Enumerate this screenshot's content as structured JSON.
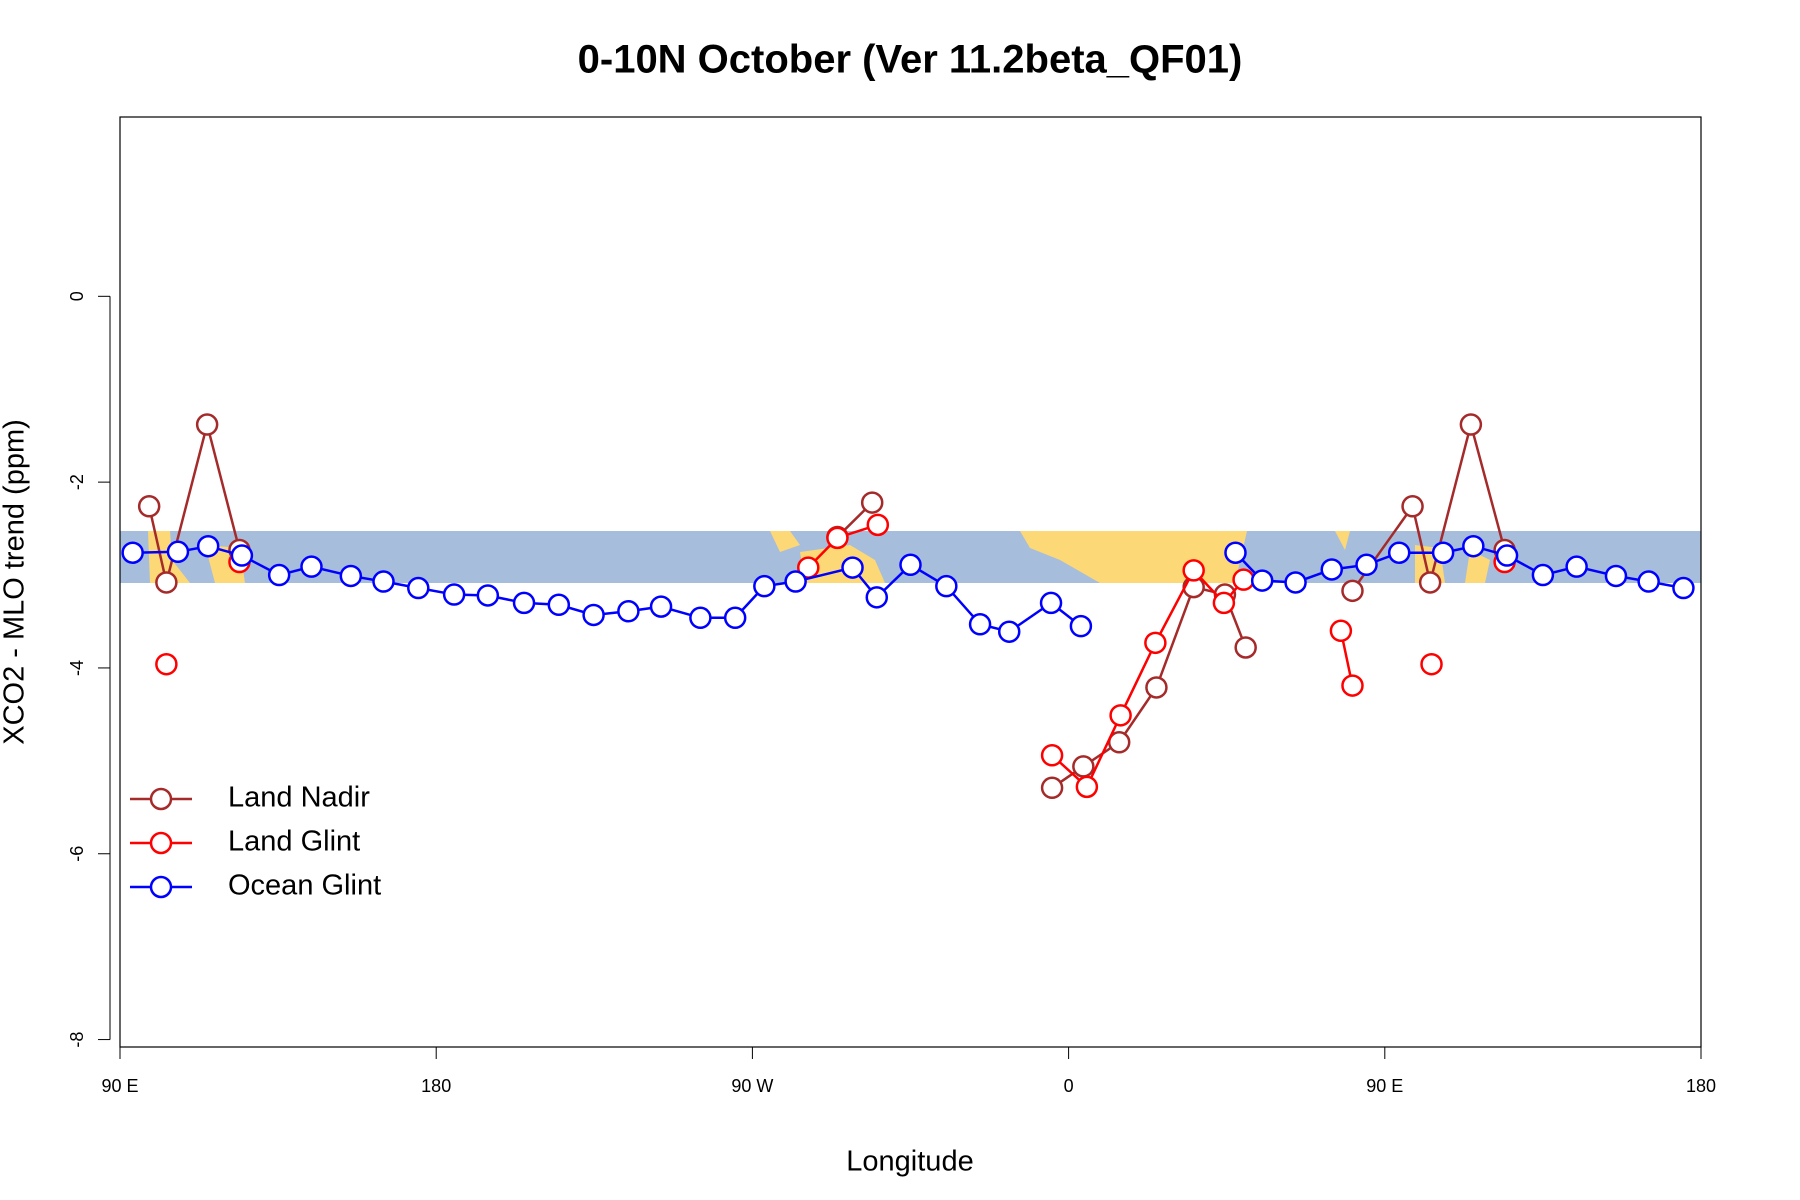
{
  "chart_data": {
    "type": "line",
    "title": "0-10N October (Ver 11.2beta_QF01)",
    "x_label": "Longitude",
    "y_label": "XCO2 - MLO trend (ppm)",
    "xlim": [
      90,
      540
    ],
    "xticks": [
      {
        "value": 90,
        "label": "90 E"
      },
      180,
      {
        "value": 270,
        "label": "90 W"
      },
      {
        "value": 360,
        "label": "0"
      },
      {
        "value": 450,
        "label": "90 E"
      },
      {
        "value": 540,
        "label": "180"
      }
    ],
    "ylim": [
      -8.08,
      1.93
    ],
    "yticks": [
      -8,
      -6,
      -4,
      -2,
      0
    ],
    "legend": "bottom-left",
    "series": [
      {
        "name": "Land Nadir",
        "color": "#a52a2a",
        "x": [
          98.3,
          103.2,
          114.8,
          124.0,
          null,
          294.2,
          304.1,
          null,
          355.3,
          364.2,
          374.4,
          385.0,
          395.6,
          404.5,
          410.4,
          null,
          440.8,
          457.9,
          462.9,
          474.5,
          484.1
        ],
        "values": [
          -2.26,
          -3.08,
          -1.38,
          -2.73,
          null,
          -2.59,
          -2.22,
          null,
          -5.29,
          -5.06,
          -4.8,
          -4.21,
          -3.13,
          -3.21,
          -3.78,
          null,
          -3.17,
          -2.26,
          -3.08,
          -1.38,
          -2.73
        ]
      },
      {
        "name": "Land Glint",
        "color": "#ff0000",
        "x": [
          103.2,
          null,
          124.0,
          null,
          285.9,
          294.2,
          305.7,
          null,
          355.3,
          365.2,
          374.8,
          384.7,
          395.6,
          404.2,
          409.8,
          null,
          437.5,
          440.8,
          null,
          463.3,
          null,
          484.1
        ],
        "values": [
          -3.96,
          null,
          -2.86,
          null,
          -2.92,
          -2.6,
          -2.46,
          null,
          -4.94,
          -5.28,
          -4.51,
          -3.73,
          -2.95,
          -3.3,
          -3.05,
          null,
          -3.6,
          -4.19,
          null,
          -3.96,
          null,
          -2.86
        ]
      },
      {
        "name": "Ocean Glint",
        "color": "#0000ff",
        "x": [
          93.6,
          106.5,
          115.1,
          124.7,
          135.3,
          144.5,
          155.7,
          165.0,
          174.9,
          185.1,
          194.7,
          205.0,
          214.9,
          224.8,
          234.7,
          244.0,
          255.2,
          265.1,
          273.4,
          282.3,
          298.5,
          305.4,
          315.0,
          325.2,
          334.8,
          343.1,
          355.0,
          363.5,
          null,
          407.5,
          415.1,
          424.6,
          434.9,
          444.8,
          454.1,
          466.6,
          475.2,
          484.8,
          495.0,
          504.6,
          515.8,
          525.1,
          535.0
        ],
        "values": [
          -2.76,
          -2.75,
          -2.69,
          -2.79,
          -3.0,
          -2.91,
          -3.01,
          -3.07,
          -3.14,
          -3.21,
          -3.22,
          -3.3,
          -3.32,
          -3.43,
          -3.39,
          -3.34,
          -3.46,
          -3.46,
          -3.12,
          -3.07,
          -2.92,
          -3.24,
          -2.89,
          -3.12,
          -3.53,
          -3.61,
          -3.3,
          -3.55,
          null,
          -2.76,
          -3.06,
          -3.08,
          -2.94,
          -2.89,
          -2.76,
          -2.76,
          -2.69,
          -2.79,
          -3.0,
          -2.91,
          -3.01,
          -3.07,
          -3.14
        ]
      }
    ]
  }
}
